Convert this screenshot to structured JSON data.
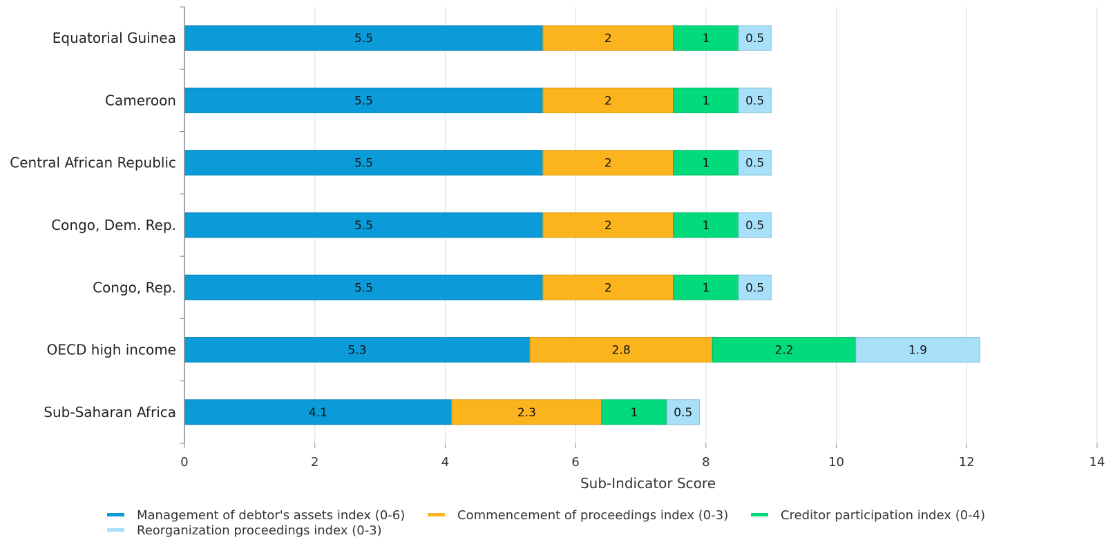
{
  "chart_data": {
    "type": "bar",
    "orientation": "horizontal",
    "stacked": true,
    "title": "",
    "xlabel": "Sub-Indicator Score",
    "ylabel": "",
    "xlim": [
      0,
      14
    ],
    "xticks": [
      0,
      2,
      4,
      6,
      8,
      10,
      12,
      14
    ],
    "grid": "vertical",
    "legend_position": "bottom",
    "categories": [
      "Equatorial Guinea",
      "Cameroon",
      "Central African Republic",
      "Congo, Dem. Rep.",
      "Congo, Rep.",
      "OECD high income",
      "Sub-Saharan Africa"
    ],
    "series": [
      {
        "name": "Management of debtor's assets index (0-6)",
        "color": "#0a9bd8",
        "border": "#0b7fb4",
        "values": [
          5.5,
          5.5,
          5.5,
          5.5,
          5.5,
          5.3,
          4.1
        ]
      },
      {
        "name": "Commencement of proceedings index (0-3)",
        "color": "#fbb41d",
        "border": "#d9970f",
        "values": [
          2,
          2,
          2,
          2,
          2,
          2.8,
          2.3
        ]
      },
      {
        "name": "Creditor participation index (0-4)",
        "color": "#02db7c",
        "border": "#06b467",
        "values": [
          1,
          1,
          1,
          1,
          1,
          2.2,
          1
        ]
      },
      {
        "name": "Reorganization proceedings index (0-3)",
        "color": "#a8e0f9",
        "border": "#7fb8d2",
        "values": [
          0.5,
          0.5,
          0.5,
          0.5,
          0.5,
          1.9,
          0.5
        ]
      }
    ]
  }
}
